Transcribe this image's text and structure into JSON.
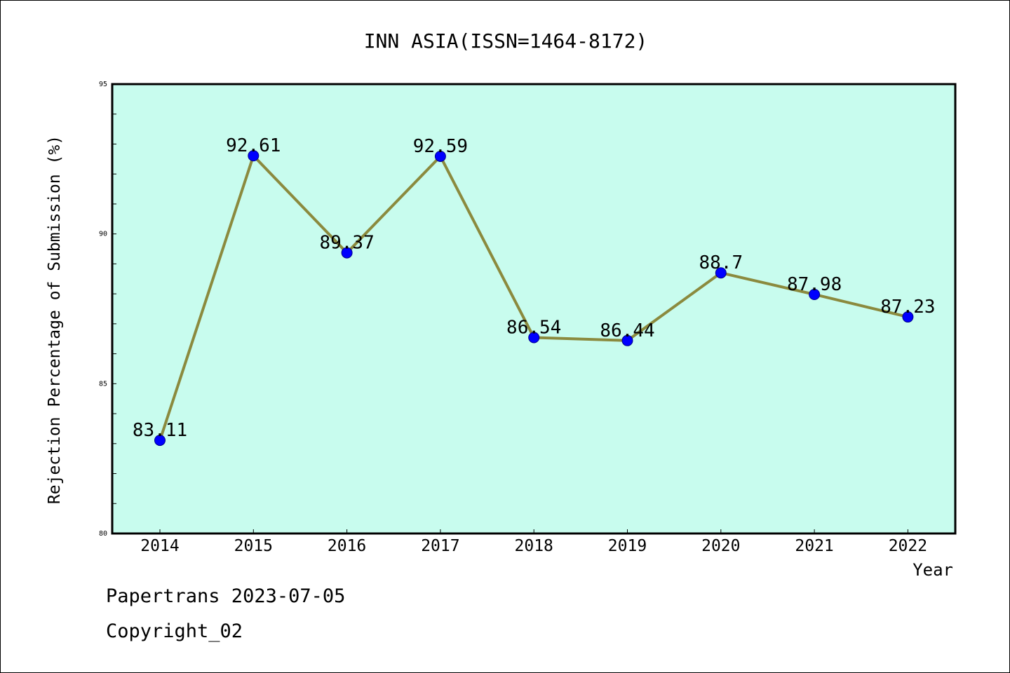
{
  "chart_data": {
    "type": "line",
    "title": "INN ASIA(ISSN=1464-8172)",
    "xlabel": "Year",
    "ylabel": "Rejection Percentage of Submission (%)",
    "categories": [
      "2014",
      "2015",
      "2016",
      "2017",
      "2018",
      "2019",
      "2020",
      "2021",
      "2022"
    ],
    "values": [
      83.11,
      92.61,
      89.37,
      92.59,
      86.54,
      86.44,
      88.7,
      87.98,
      87.23
    ],
    "data_labels": [
      "83.11",
      "92.61",
      "89.37",
      "92.59",
      "86.54",
      "86.44",
      "88.7",
      "87.98",
      "87.23"
    ],
    "ylim": [
      80,
      95
    ],
    "yticks": [
      "80",
      "85",
      "90",
      "95"
    ],
    "grid": false,
    "colors": {
      "plot_background": "#c8fcee",
      "line": "#8b8a3e",
      "marker": "#0000ff"
    }
  },
  "footer": {
    "line1": "Papertrans 2023-07-05",
    "line2": "Copyright_02"
  }
}
